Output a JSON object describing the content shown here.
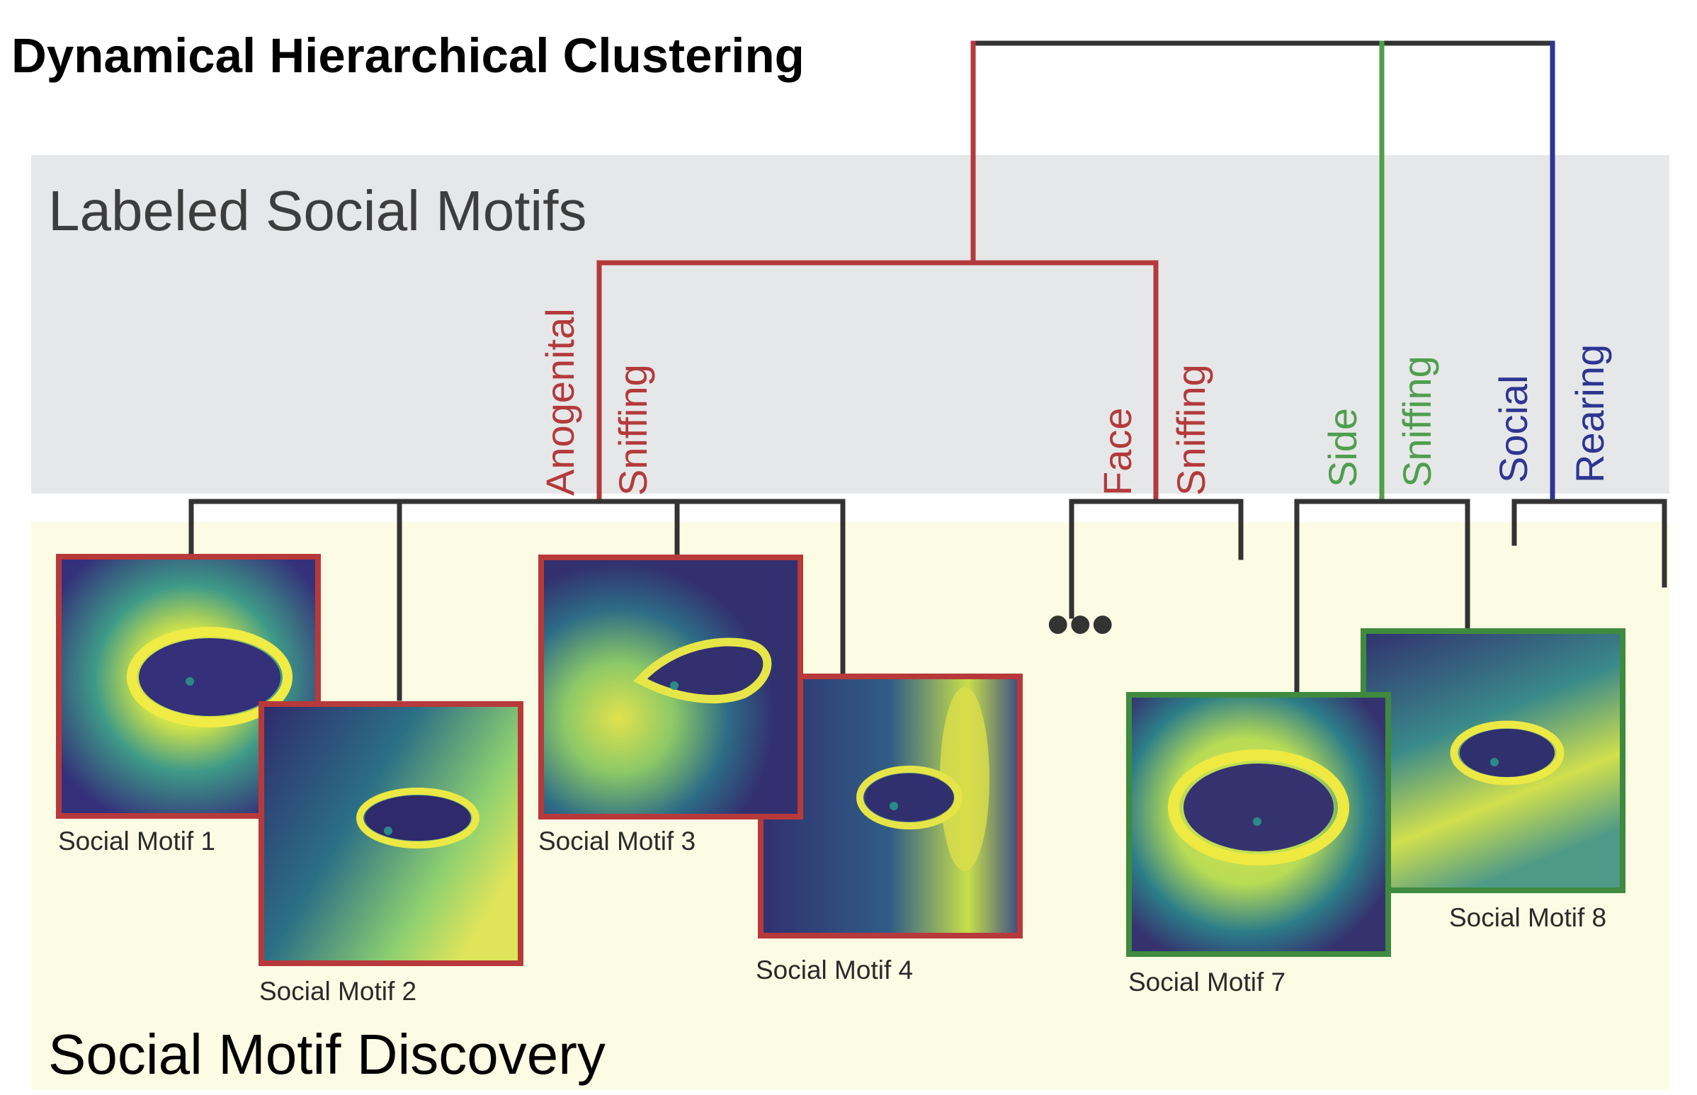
{
  "title": "Dynamical Hierarchical Clustering",
  "bands": {
    "labeled": "Labeled Social Motifs",
    "discovery": "Social Motif Discovery"
  },
  "behaviors": {
    "anogenital_sniffing": [
      "Anogenital",
      "Sniffing"
    ],
    "face_sniffing": [
      "Face",
      "Sniffing"
    ],
    "side_sniffing": [
      "Side",
      "Sniffing"
    ],
    "social_rearing": [
      "Social",
      "Rearing"
    ]
  },
  "motifs": {
    "m1": "Social Motif 1",
    "m2": "Social Motif 2",
    "m3": "Social Motif 3",
    "m4": "Social Motif 4",
    "m7": "Social Motif 7",
    "m8": "Social Motif 8"
  },
  "ellipsis": "•••",
  "colors": {
    "tree_dark": "#333333",
    "red_cluster": "#b33a3c",
    "green_cluster": "#4f9e4f",
    "blue_cluster": "#2e3591",
    "red_frame": "#b8393b",
    "green_frame": "#3f8a3f",
    "labeled_band": "#e6e7e8",
    "discovery_band": "#fcfbe4",
    "heatmap_low": "#3b2f77",
    "heatmap_mid": "#2c8a8a",
    "heatmap_high": "#e9e634"
  }
}
